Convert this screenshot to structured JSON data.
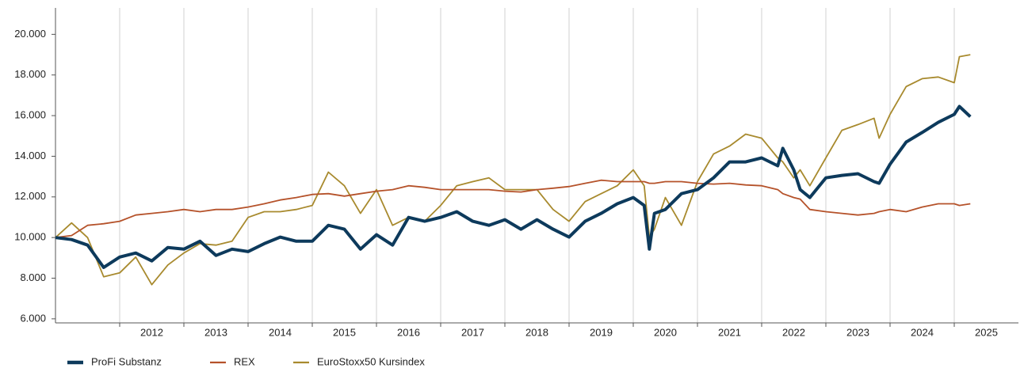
{
  "chart_data": {
    "type": "line",
    "x": [
      2011.0,
      2011.25,
      2011.5,
      2011.75,
      2012.0,
      2012.25,
      2012.5,
      2012.75,
      2013.0,
      2013.25,
      2013.5,
      2013.75,
      2014.0,
      2014.25,
      2014.5,
      2014.75,
      2015.0,
      2015.25,
      2015.5,
      2015.75,
      2016.0,
      2016.25,
      2016.5,
      2016.75,
      2017.0,
      2017.25,
      2017.5,
      2017.75,
      2018.0,
      2018.25,
      2018.5,
      2018.75,
      2019.0,
      2019.25,
      2019.5,
      2019.75,
      2020.0,
      2020.17,
      2020.25,
      2020.33,
      2020.5,
      2020.75,
      2021.0,
      2021.25,
      2021.5,
      2021.75,
      2022.0,
      2022.25,
      2022.33,
      2022.5,
      2022.6,
      2022.75,
      2023.0,
      2023.25,
      2023.5,
      2023.75,
      2023.83,
      2024.0,
      2024.25,
      2024.5,
      2024.75,
      2025.0,
      2025.08,
      2025.25
    ],
    "series": [
      {
        "name": "ProFi Substanz",
        "color": "#0d3a5c",
        "values": [
          10000,
          9900,
          9630,
          8530,
          9040,
          9240,
          8850,
          9510,
          9430,
          9820,
          9120,
          9430,
          9310,
          9700,
          10020,
          9820,
          9820,
          10600,
          10410,
          9430,
          10140,
          9630,
          10990,
          10800,
          10990,
          11270,
          10800,
          10600,
          10880,
          10410,
          10880,
          10410,
          10020,
          10800,
          11190,
          11660,
          11970,
          11580,
          9430,
          11190,
          11380,
          12160,
          12360,
          12940,
          13720,
          13720,
          13920,
          13530,
          14390,
          13330,
          12360,
          11970,
          12940,
          13060,
          13140,
          12750,
          12670,
          13610,
          14700,
          15170,
          15670,
          16060,
          16450,
          15950
        ]
      },
      {
        "name": "REX",
        "color": "#b5522a",
        "values": [
          10000,
          10100,
          10600,
          10680,
          10800,
          11110,
          11190,
          11270,
          11380,
          11270,
          11380,
          11380,
          11500,
          11660,
          11850,
          11970,
          12120,
          12160,
          12040,
          12160,
          12280,
          12360,
          12550,
          12470,
          12360,
          12360,
          12360,
          12360,
          12280,
          12240,
          12360,
          12430,
          12510,
          12670,
          12820,
          12750,
          12750,
          12750,
          12670,
          12670,
          12750,
          12750,
          12670,
          12630,
          12670,
          12590,
          12550,
          12360,
          12160,
          11970,
          11890,
          11380,
          11270,
          11190,
          11110,
          11190,
          11270,
          11380,
          11270,
          11500,
          11660,
          11660,
          11580,
          11660
        ]
      },
      {
        "name": "EuroStoxx50 Kursindex",
        "color": "#a88a2e",
        "values": [
          10000,
          10720,
          10000,
          8070,
          8260,
          9040,
          7680,
          8650,
          9240,
          9700,
          9630,
          9820,
          10990,
          11270,
          11270,
          11380,
          11580,
          13220,
          12550,
          11190,
          12360,
          10600,
          10990,
          10800,
          11580,
          12550,
          12750,
          12940,
          12360,
          12360,
          12360,
          11380,
          10800,
          11770,
          12160,
          12550,
          13330,
          12550,
          10020,
          10410,
          11970,
          10600,
          12750,
          14110,
          14500,
          15090,
          14890,
          13920,
          13720,
          12940,
          13330,
          12550,
          13920,
          15280,
          15560,
          15870,
          14890,
          16060,
          17430,
          17820,
          17900,
          17620,
          18900,
          19000
        ]
      }
    ],
    "xlim": [
      2011,
      2026
    ],
    "xticks": [
      2012,
      2013,
      2014,
      2015,
      2016,
      2017,
      2018,
      2019,
      2020,
      2021,
      2022,
      2023,
      2024,
      2025
    ],
    "ylim": [
      5800,
      21300
    ],
    "yticks": [
      {
        "value": 6000,
        "label": "6.000"
      },
      {
        "value": 8000,
        "label": "8.000"
      },
      {
        "value": 10000,
        "label": "10.000"
      },
      {
        "value": 12000,
        "label": "12.000"
      },
      {
        "value": 14000,
        "label": "14.000"
      },
      {
        "value": 16000,
        "label": "16.000"
      },
      {
        "value": 18000,
        "label": "18.000"
      },
      {
        "value": 20000,
        "label": "20.000"
      }
    ],
    "grid": true,
    "legend": "bottom-left"
  }
}
